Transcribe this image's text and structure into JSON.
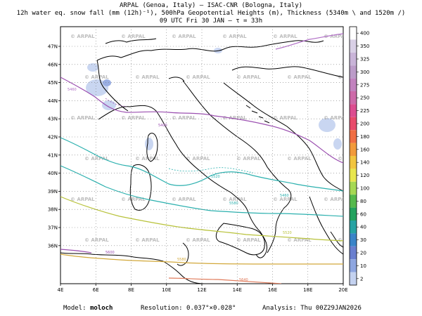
{
  "header": {
    "line1": "ARPAL (Genoa, Italy)  –  ISAC-CNR (Bologna, Italy)",
    "line2": "12h water eq. snow fall (mm (12h)⁻¹), 500hPa Geopotential Heights (m), Thickness (5340m \\ and 1520m /)",
    "line3": "09 UTC Fri 30 JAN  –  τ = 33h"
  },
  "footer": {
    "model_label": "Model:",
    "model_value": "moloch",
    "resolution_label": "Resolution:",
    "resolution_value": "0.037°×0.028°",
    "analysis_label": "Analysis:",
    "analysis_value": "Thu 00Z29JAN2026"
  },
  "axes": {
    "lon_ticks": [
      "4E",
      "6E",
      "8E",
      "10E",
      "12E",
      "14E",
      "16E",
      "18E",
      "20E"
    ],
    "lat_ticks": [
      "47N",
      "46N",
      "45N",
      "44N",
      "43N",
      "42N",
      "41N",
      "40N",
      "39N",
      "38N",
      "37N",
      "36N"
    ]
  },
  "watermark": "ARPAL",
  "contour_labels": [
    "5460",
    "5400",
    "5520",
    "5580",
    "5460",
    "5520",
    "5580",
    "5640",
    "5600"
  ],
  "colorbar": {
    "levels": [
      "400",
      "350",
      "325",
      "300",
      "275",
      "250",
      "225",
      "200",
      "180",
      "160",
      "140",
      "120",
      "100",
      "80",
      "60",
      "40",
      "30",
      "20",
      "10",
      "2"
    ],
    "colors": [
      "#ffffff",
      "#d9d0e6",
      "#c9b4d8",
      "#bc9cc9",
      "#c283bf",
      "#cd6aa9",
      "#dc4d90",
      "#e84b6b",
      "#f06e43",
      "#f29a3a",
      "#f2c53f",
      "#e8e64e",
      "#a6d854",
      "#55b94c",
      "#22a25e",
      "#27a3a3",
      "#3a84c8",
      "#6a7fcf",
      "#8ea6e0",
      "#c4d2f0"
    ]
  }
}
